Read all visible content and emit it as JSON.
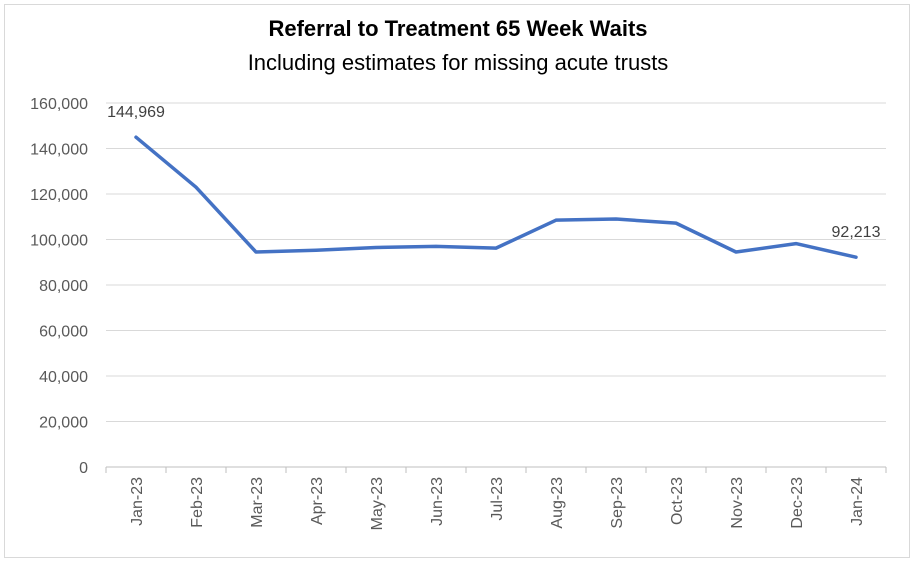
{
  "chart_data": {
    "type": "line",
    "title": "Referral to Treatment 65 Week Waits",
    "subtitle": "Including estimates for missing acute trusts",
    "categories": [
      "Jan-23",
      "Feb-23",
      "Mar-23",
      "Apr-23",
      "May-23",
      "Jun-23",
      "Jul-23",
      "Aug-23",
      "Sep-23",
      "Oct-23",
      "Nov-23",
      "Dec-23",
      "Jan-24"
    ],
    "series": [
      {
        "values": [
          144969,
          123000,
          94500,
          95300,
          96500,
          97000,
          96200,
          108500,
          109000,
          107200,
          94500,
          98200,
          92213
        ]
      }
    ],
    "y_ticks": [
      "0",
      "20,000",
      "40,000",
      "60,000",
      "80,000",
      "100,000",
      "120,000",
      "140,000",
      "160,000"
    ],
    "ylim": [
      0,
      160000
    ],
    "grid": true,
    "legend": "none",
    "data_labels": [
      {
        "index": 0,
        "text": "144,969"
      },
      {
        "index": 12,
        "text": "92,213"
      }
    ],
    "colors": {
      "line": "#4472c4",
      "grid": "#d9d9d9",
      "axis": "#bfbfbf"
    }
  }
}
